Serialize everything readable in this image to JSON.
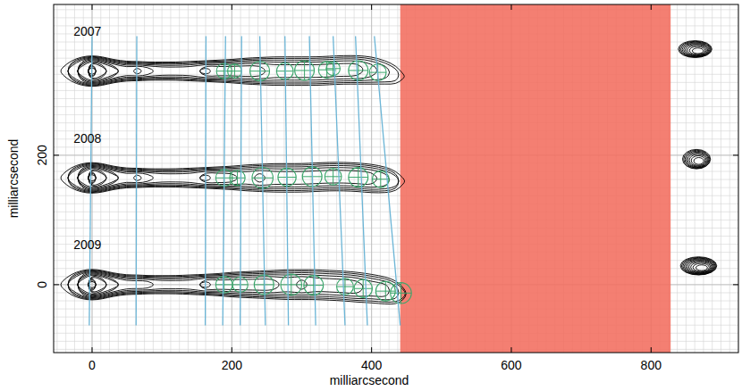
{
  "chart_data": {
    "type": "contour",
    "xlabel": "milliarcsecond",
    "ylabel": "milliarcsecond",
    "xlim": [
      -55,
      925
    ],
    "ylim": [
      -105,
      433
    ],
    "xticks": [
      0,
      200,
      400,
      600,
      800
    ],
    "yticks": [
      0,
      200
    ],
    "grid": true,
    "shaded": [
      {
        "x0": 441,
        "x1": 828,
        "color": "#f26d5e"
      }
    ],
    "cut_lines": {
      "x_top": [
        0,
        64,
        163,
        191,
        214,
        240,
        276,
        311,
        345,
        377,
        404
      ],
      "x_bottom": [
        -4,
        63,
        162,
        187,
        212,
        248,
        281,
        320,
        362,
        394,
        441
      ],
      "y_top": 384,
      "y_bottom": -63,
      "color": "#6bb5d6"
    },
    "series": [
      {
        "name": "2007",
        "color": "#000000",
        "x": [
          -42,
          -30,
          -15,
          0,
          15,
          30,
          50,
          65,
          80,
          100,
          120,
          140,
          163,
          180,
          200,
          220,
          240,
          260,
          280,
          300,
          320,
          340,
          360,
          380,
          400,
          420,
          435,
          445
        ],
        "y": [
          330,
          330,
          330,
          330,
          330,
          330,
          330,
          330,
          330,
          330,
          330,
          330,
          330,
          330,
          330,
          330,
          330,
          330,
          330,
          330,
          330,
          331,
          332,
          332,
          331,
          328,
          324,
          322
        ],
        "half_width": [
          6,
          16,
          22,
          24,
          22,
          18,
          15,
          15,
          14,
          14,
          14,
          15,
          16,
          17,
          18,
          20,
          21,
          22,
          22,
          22,
          22,
          22,
          22,
          22,
          21,
          18,
          14,
          4
        ],
        "peak": [
          1,
          4,
          8,
          13,
          10,
          8,
          6,
          7,
          6,
          5,
          5,
          5,
          7,
          6,
          6,
          6,
          6,
          5,
          5,
          5,
          5,
          5,
          5,
          5,
          4,
          3,
          2,
          1
        ],
        "components": {
          "color": "#3aa56a",
          "x": [
            189,
            204,
            240,
            276,
            304,
            336,
            345,
            381,
            409
          ],
          "y": [
            330,
            330,
            330,
            330,
            331,
            332,
            334,
            331,
            328
          ],
          "r": [
            11,
            10,
            14,
            12,
            14,
            12,
            10,
            14,
            12
          ]
        }
      },
      {
        "name": "2008",
        "color": "#000000",
        "x": [
          -42,
          -30,
          -15,
          0,
          15,
          30,
          50,
          65,
          80,
          100,
          120,
          140,
          163,
          180,
          200,
          220,
          240,
          260,
          280,
          300,
          320,
          340,
          360,
          380,
          400,
          420,
          435,
          445
        ],
        "y": [
          165,
          165,
          165,
          165,
          165,
          165,
          165,
          165,
          165,
          165,
          165,
          165,
          165,
          165,
          165,
          165,
          165,
          165,
          165,
          165,
          166,
          167,
          167,
          166,
          164,
          162,
          160,
          160
        ],
        "half_width": [
          6,
          16,
          22,
          24,
          22,
          18,
          15,
          15,
          14,
          14,
          14,
          15,
          16,
          17,
          18,
          20,
          21,
          22,
          22,
          22,
          22,
          22,
          22,
          22,
          22,
          20,
          15,
          5
        ],
        "peak": [
          1,
          4,
          8,
          13,
          10,
          8,
          6,
          7,
          6,
          5,
          5,
          5,
          7,
          6,
          6,
          5,
          6,
          5,
          5,
          5,
          5,
          5,
          5,
          5,
          5,
          4,
          3,
          1
        ],
        "components": {
          "color": "#3aa56a",
          "x": [
            189,
            208,
            244,
            279,
            315,
            345,
            381,
            413
          ],
          "y": [
            165,
            165,
            165,
            166,
            167,
            167,
            166,
            163
          ],
          "r": [
            12,
            11,
            15,
            13,
            14,
            12,
            14,
            12
          ]
        }
      },
      {
        "name": "2009",
        "color": "#000000",
        "x": [
          -42,
          -30,
          -15,
          0,
          15,
          30,
          50,
          65,
          80,
          100,
          120,
          140,
          163,
          180,
          200,
          220,
          240,
          260,
          280,
          300,
          320,
          340,
          360,
          380,
          400,
          420,
          435,
          445
        ],
        "y": [
          0,
          0,
          0,
          0,
          0,
          0,
          0,
          0,
          0,
          0,
          0,
          0,
          0,
          0,
          0,
          0,
          0,
          0,
          0,
          0,
          0,
          -1,
          -2,
          -4,
          -6,
          -9,
          -12,
          -14
        ],
        "half_width": [
          6,
          16,
          22,
          24,
          22,
          18,
          15,
          15,
          14,
          14,
          14,
          15,
          16,
          17,
          19,
          20,
          21,
          22,
          23,
          23,
          23,
          23,
          23,
          23,
          22,
          21,
          18,
          10
        ],
        "peak": [
          1,
          4,
          8,
          13,
          10,
          8,
          6,
          6,
          6,
          5,
          5,
          5,
          7,
          6,
          6,
          6,
          6,
          6,
          5,
          6,
          5,
          5,
          5,
          5,
          4,
          4,
          3,
          2
        ],
        "components": {
          "color": "#3aa56a",
          "x": [
            189,
            212,
            246,
            285,
            317,
            362,
            388,
            420,
            442
          ],
          "y": [
            0,
            0,
            0,
            0,
            -1,
            -3,
            -6,
            -10,
            -13
          ],
          "r": [
            12,
            11,
            14,
            15,
            14,
            12,
            13,
            14,
            15
          ]
        }
      }
    ],
    "hotspots": {
      "color": "#000000",
      "x": [
        863,
        865,
        868
      ],
      "y": [
        364,
        194,
        29
      ],
      "rx": [
        24,
        20,
        26
      ],
      "ry": [
        13,
        15,
        14
      ],
      "levels": [
        9,
        8,
        10
      ]
    }
  }
}
